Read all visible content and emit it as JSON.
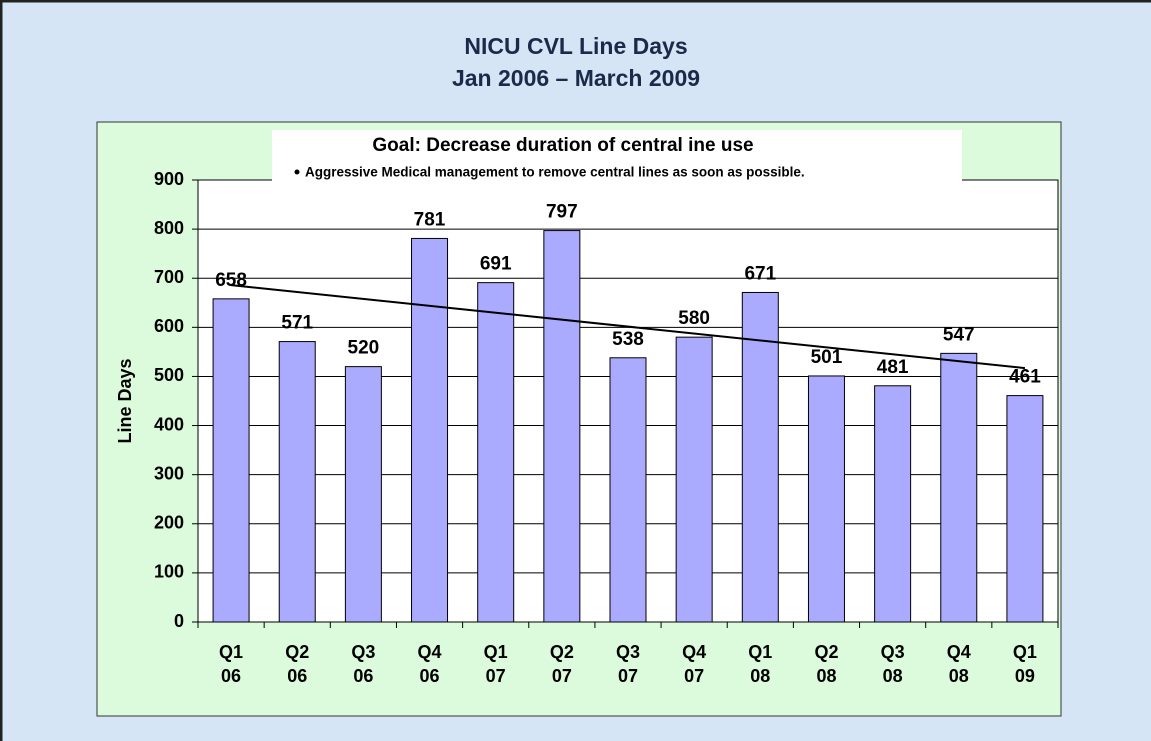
{
  "chart_data": {
    "type": "bar",
    "title": "NICU CVL Line Days",
    "subtitle": "Jan 2006 – March 2009",
    "annotation": "Goal: Decrease duration of central ine use",
    "annotation_bullet": "Aggressive Medical management to remove central lines as soon as possible.",
    "y_label": "Line Days",
    "categories": [
      "Q1\n06",
      "Q2\n06",
      "Q3\n06",
      "Q4\n06",
      "Q1\n07",
      "Q2\n07",
      "Q3\n07",
      "Q4\n07",
      "Q1\n08",
      "Q2\n08",
      "Q3\n08",
      "Q4\n08",
      "Q1\n09"
    ],
    "values": [
      658,
      571,
      520,
      781,
      691,
      797,
      538,
      580,
      671,
      501,
      481,
      547,
      461
    ],
    "color": "#aaaaff",
    "trend_line": [
      686,
      517
    ],
    "ylim": [
      0,
      900
    ],
    "yticks": [
      0,
      100,
      200,
      300,
      400,
      500,
      600,
      700,
      800,
      900
    ],
    "grid": true
  }
}
